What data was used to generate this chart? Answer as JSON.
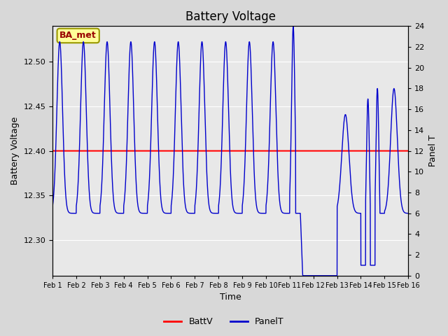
{
  "title": "Battery Voltage",
  "xlabel": "Time",
  "ylabel_left": "Battery Voltage",
  "ylabel_right": "Panel T",
  "ylim_left": [
    12.26,
    12.54
  ],
  "ylim_right": [
    0,
    24
  ],
  "xlim": [
    0,
    15
  ],
  "x_tick_labels": [
    "Feb 1",
    "Feb 2",
    "Feb 3",
    "Feb 4",
    "Feb 5",
    "Feb 6",
    "Feb 7",
    "Feb 8",
    "Feb 9",
    "Feb 10",
    "Feb 11",
    "Feb 12",
    "Feb 13",
    "Feb 14",
    "Feb 15",
    "Feb 16"
  ],
  "batt_v": 12.4,
  "batt_color": "#ff0000",
  "panel_color": "#0000cc",
  "bg_color": "#d8d8d8",
  "plot_bg": "#e8e8e8",
  "grid_color": "#ffffff",
  "annotation_text": "BA_met",
  "annotation_bg": "#ffff99",
  "annotation_border": "#999900",
  "annotation_text_color": "#990000",
  "legend_items": [
    "BattV",
    "PanelT"
  ],
  "title_fontsize": 12,
  "axis_fontsize": 9,
  "tick_fontsize": 8
}
